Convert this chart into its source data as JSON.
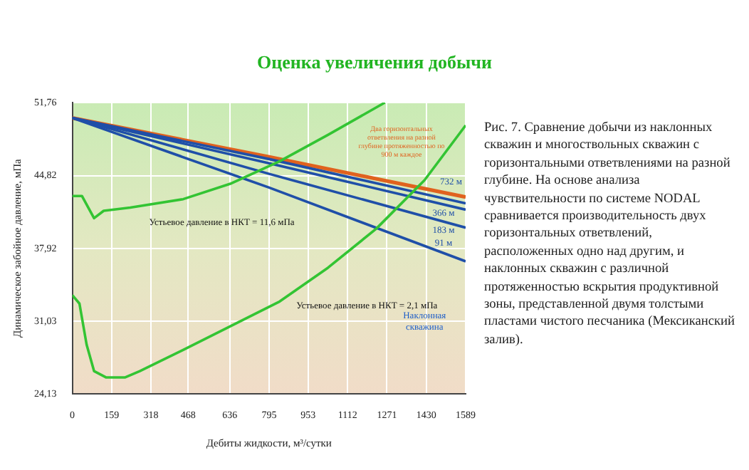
{
  "chart_data": {
    "type": "line",
    "title": "Оценка увеличения добычи",
    "xlabel": "Дебиты жидкости, м³/сутки",
    "ylabel": "Динамическое забойное давление, мПа",
    "xlim": [
      0,
      1589
    ],
    "xticks": [
      0,
      159,
      318,
      468,
      636,
      795,
      953,
      1112,
      1271,
      1430,
      1589
    ],
    "ylim": [
      24.13,
      51.76
    ],
    "yticks": [
      {
        "value": 24.13,
        "label": "24,13"
      },
      {
        "value": 31.03,
        "label": "31,03"
      },
      {
        "value": 37.92,
        "label": "37,92"
      },
      {
        "value": 44.82,
        "label": "44,82"
      },
      {
        "value": 51.76,
        "label": "51,76"
      }
    ],
    "grid": true,
    "legend": false,
    "marker": "none",
    "line_style": "solid",
    "series": [
      {
        "name": "Устьевое давление в НКТ = 11,6 мПа",
        "color": "#33c433",
        "x": [
          0,
          39,
          88,
          127,
          234,
          448,
          643,
          838,
          1033,
          1263
        ],
        "values": [
          42.9,
          42.9,
          40.8,
          41.5,
          41.8,
          42.6,
          44.1,
          46.2,
          48.7,
          51.76
        ]
      },
      {
        "name": "Устьевое давление в НКТ = 2,1 мПа",
        "color": "#33c433",
        "x": [
          0,
          29,
          58,
          88,
          136,
          214,
          273,
          448,
          643,
          838,
          1033,
          1228,
          1423,
          1589
        ],
        "values": [
          33.5,
          32.7,
          28.8,
          26.3,
          25.7,
          25.7,
          26.3,
          28.3,
          30.6,
          32.9,
          36.1,
          39.8,
          44.4,
          49.6
        ]
      },
      {
        "color": "#1f4fa8",
        "x": [
          0,
          795,
          1589
        ],
        "values": [
          50.3,
          43.7,
          36.7
        ]
      },
      {
        "color": "#1f4fa8",
        "x": [
          0,
          795,
          1589
        ],
        "values": [
          50.3,
          45.0,
          39.9
        ]
      },
      {
        "color": "#1f4fa8",
        "x": [
          0,
          795,
          1589
        ],
        "values": [
          50.3,
          46.0,
          41.6
        ]
      },
      {
        "color": "#1f4fa8",
        "x": [
          0,
          795,
          1589
        ],
        "values": [
          50.3,
          46.4,
          42.2
        ]
      },
      {
        "name": "Два горизонтальных ответвления на разной глубине протяженностью по 900 м каждое",
        "color": "#e0621e",
        "x": [
          0,
          795,
          1589
        ],
        "values": [
          50.3,
          46.6,
          42.8
        ]
      }
    ],
    "annotations": [
      "Наклонная скважина",
      "732 м",
      "366 м",
      "183 м",
      "91 м",
      "Рис. 7. Сравнение добычи из наклонных скважин и многоствольных скважин с горизонтальными ответвлениями на разной глубине. На основе анализа чувствительности по системе NODAL сравнивается производительность двух горизонтальных ответвлений, расположенных одно над другим, и наклонных скважин с различной протяженностью вскрытия продуктивной зоны, представленной двумя толстыми пластами чистого песчаника (Мексиканский залив)."
    ]
  }
}
